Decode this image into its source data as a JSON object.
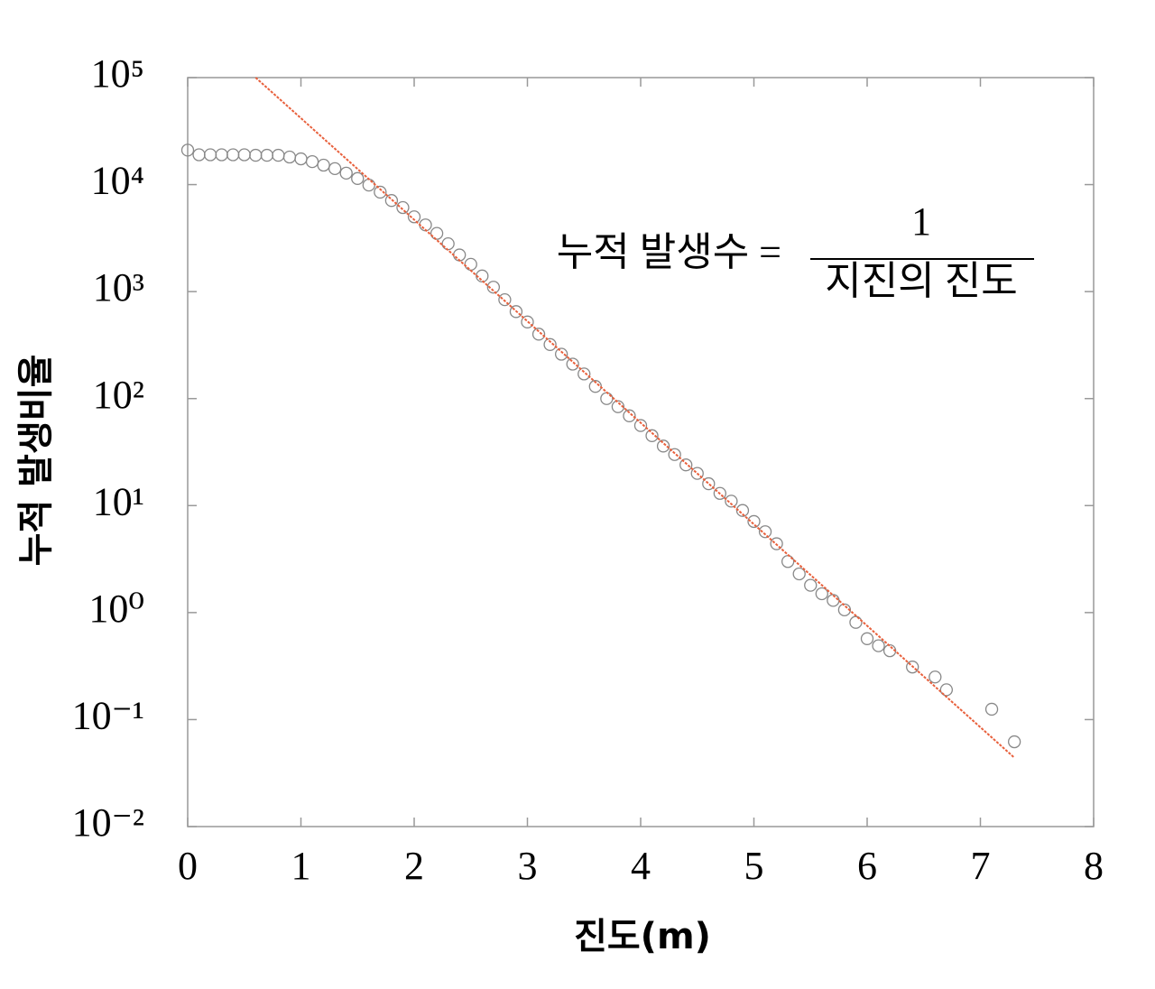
{
  "chart_data": {
    "type": "scatter",
    "log_y": true,
    "xlabel": "진도(m)",
    "ylabel": "누적 발생비율",
    "xlim": [
      0,
      8
    ],
    "xticks": [
      0,
      1,
      2,
      3,
      4,
      5,
      6,
      7,
      8
    ],
    "ylim": [
      0.01,
      100000
    ],
    "yticks": [
      {
        "value": 0.01,
        "label": "10⁻²"
      },
      {
        "value": 0.1,
        "label": "10⁻¹"
      },
      {
        "value": 1,
        "label": "10⁰"
      },
      {
        "value": 10,
        "label": "10¹"
      },
      {
        "value": 100,
        "label": "10²"
      },
      {
        "value": 1000,
        "label": "10³"
      },
      {
        "value": 10000,
        "label": "10⁴"
      },
      {
        "value": 100000,
        "label": "10⁵"
      }
    ],
    "annotation": {
      "lhs": "누적 발생수 =",
      "numerator": "1",
      "denominator": "지진의 진도"
    },
    "series": [
      {
        "type": "scatter",
        "color": "#888888",
        "x": [
          0,
          0.1,
          0.2,
          0.3,
          0.4,
          0.5,
          0.6,
          0.7,
          0.8,
          0.9,
          1.0,
          1.1,
          1.2,
          1.3,
          1.4,
          1.5,
          1.6,
          1.7,
          1.8,
          1.9,
          2.0,
          2.1,
          2.2,
          2.3,
          2.4,
          2.5,
          2.6,
          2.7,
          2.8,
          2.9,
          3.0,
          3.1,
          3.2,
          3.3,
          3.4,
          3.5,
          3.6,
          3.7,
          3.8,
          3.9,
          4.0,
          4.1,
          4.2,
          4.3,
          4.4,
          4.5,
          4.6,
          4.7,
          4.8,
          4.9,
          5.0,
          5.1,
          5.2,
          5.3,
          5.4,
          5.5,
          5.6,
          5.7,
          5.8,
          5.9,
          6.0,
          6.1,
          6.2,
          6.4,
          6.6,
          6.7,
          7.1,
          7.3
        ],
        "values": [
          21000,
          19000,
          19000,
          19000,
          19000,
          19000,
          18800,
          18800,
          18800,
          18100,
          17400,
          16400,
          15200,
          14100,
          12800,
          11400,
          9900,
          8500,
          7100,
          6100,
          5000,
          4200,
          3500,
          2800,
          2200,
          1800,
          1400,
          1100,
          840,
          650,
          520,
          400,
          320,
          260,
          210,
          170,
          130,
          100,
          84,
          69,
          56,
          45,
          36,
          30,
          24,
          20,
          16,
          13,
          11,
          9,
          7.1,
          5.7,
          4.4,
          3,
          2.3,
          1.8,
          1.5,
          1.3,
          1.06,
          0.81,
          0.57,
          0.49,
          0.44,
          0.31,
          0.25,
          0.19,
          0.125,
          0.062
        ]
      },
      {
        "type": "line",
        "color": "#e8603c",
        "x": [
          0.6,
          7.3
        ],
        "values": [
          100000,
          0.044
        ]
      }
    ]
  }
}
